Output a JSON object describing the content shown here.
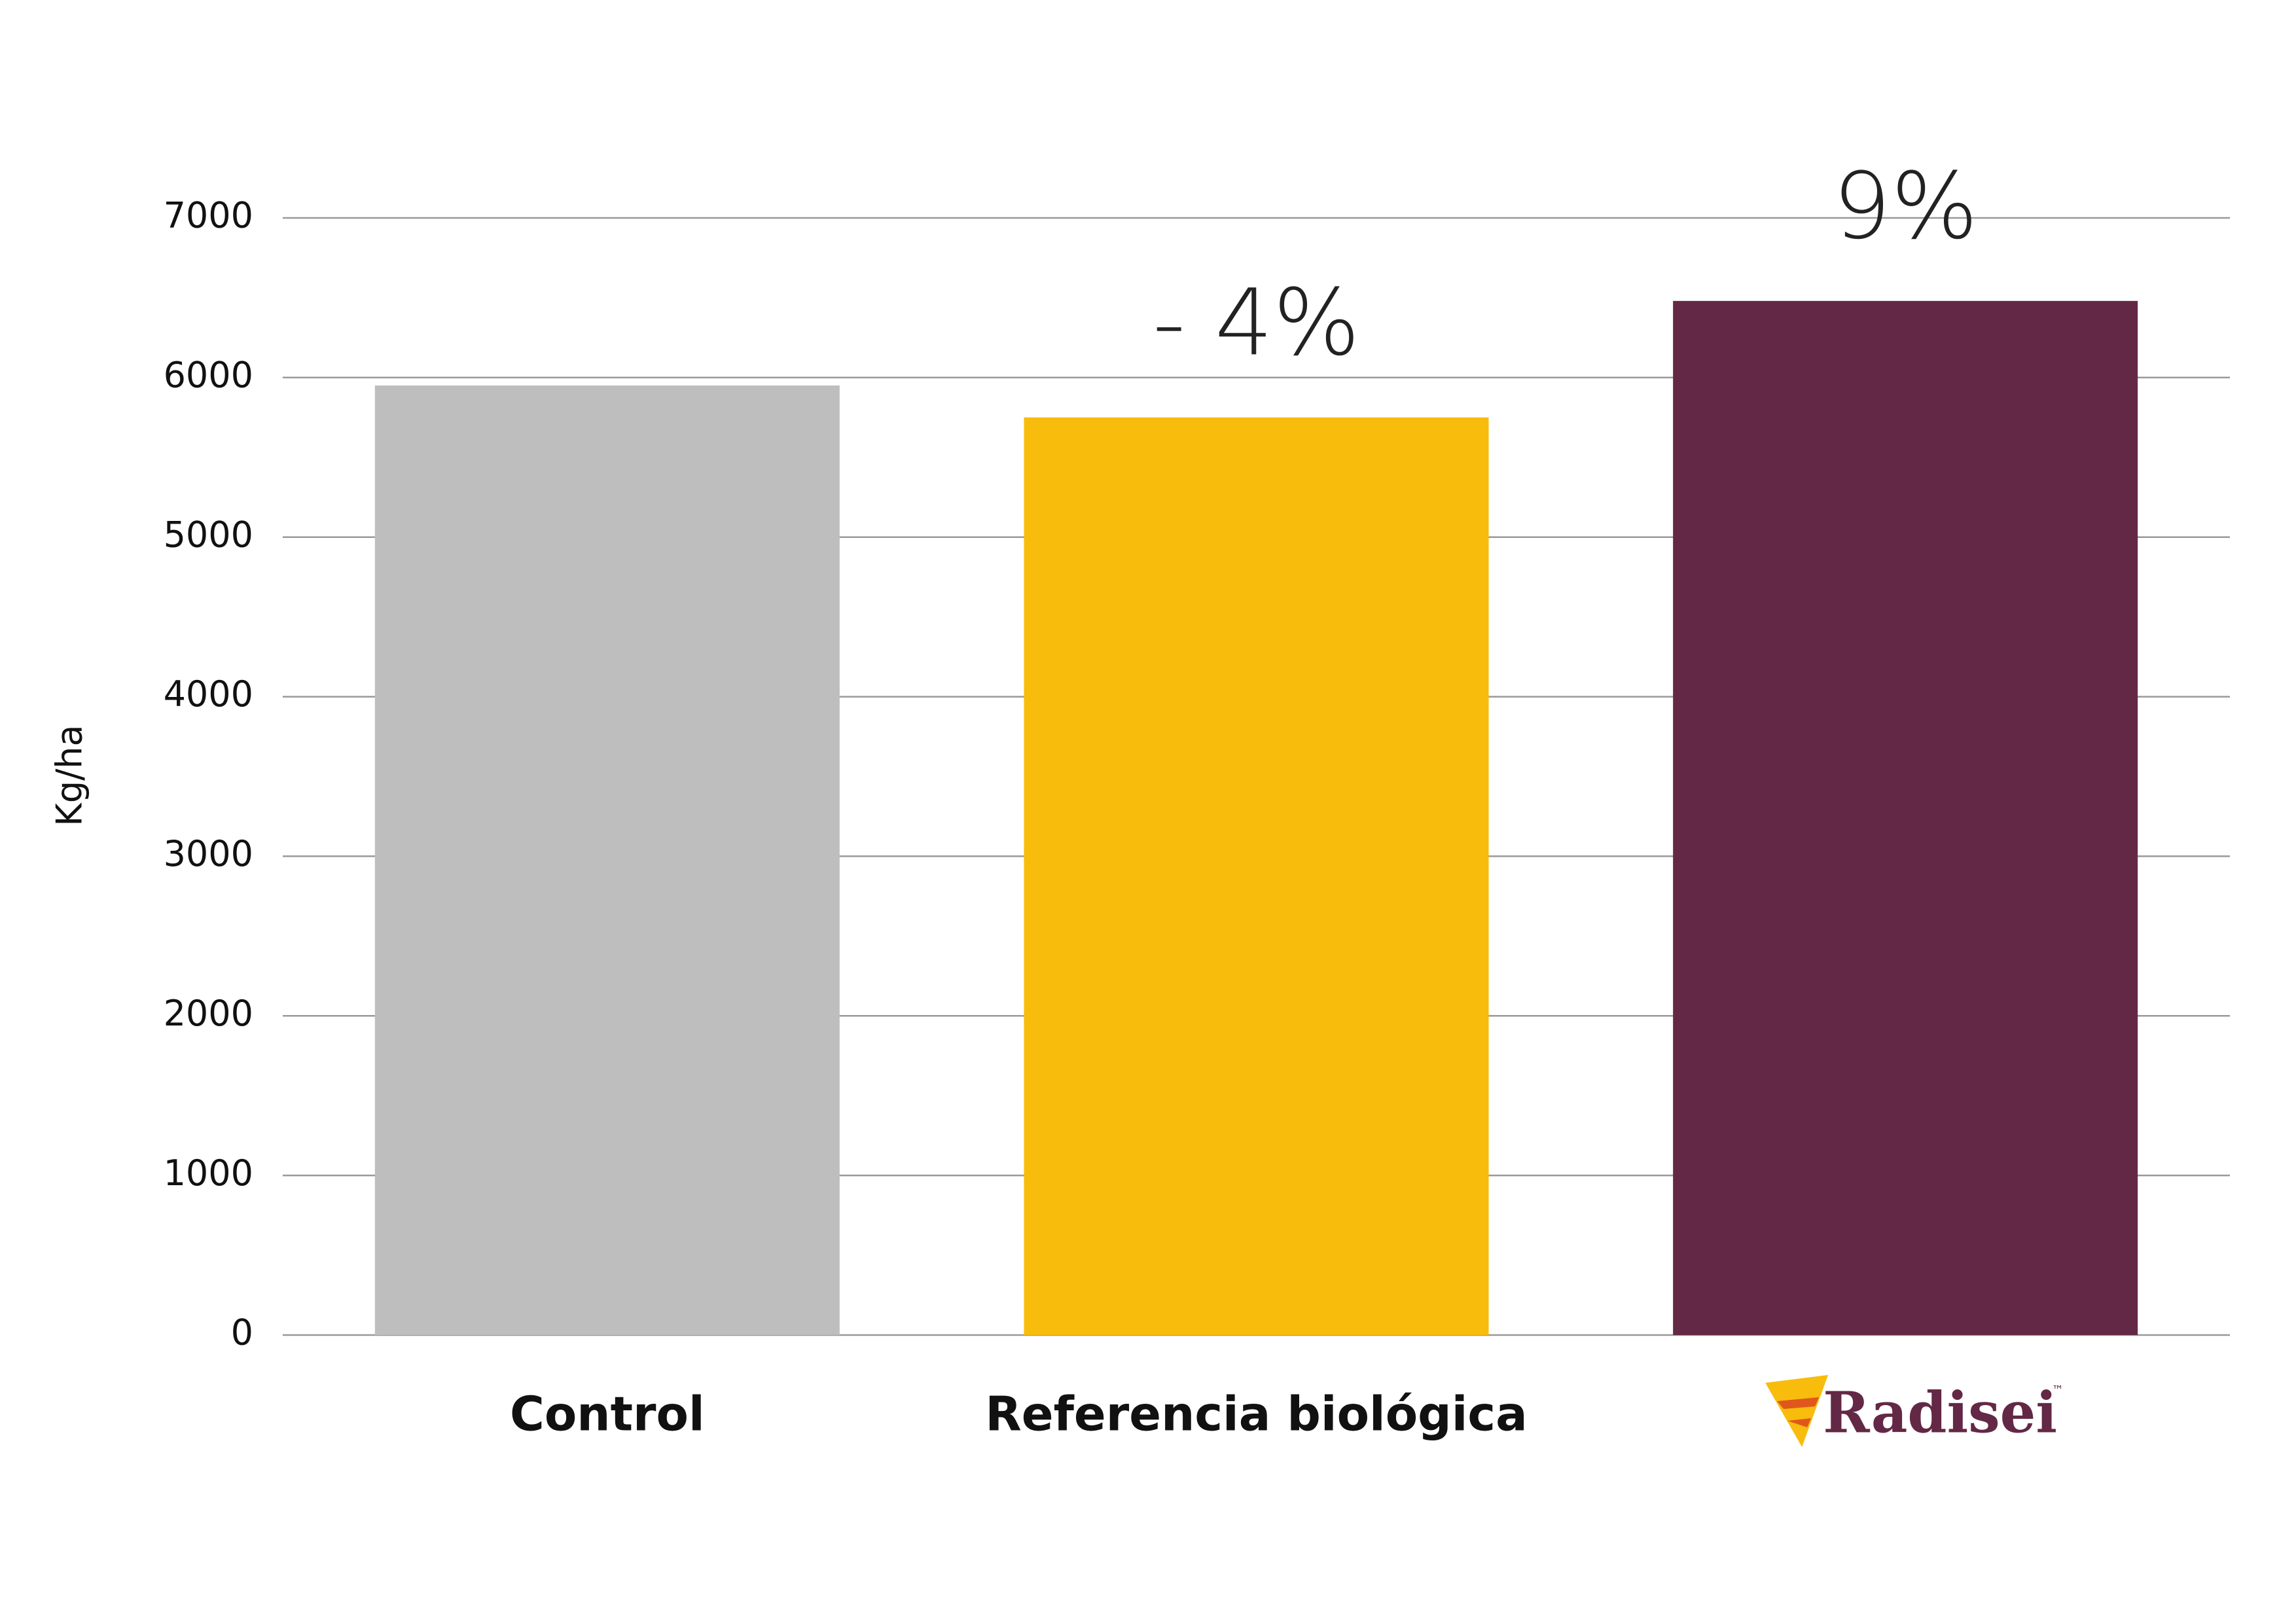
{
  "chart_data": {
    "type": "bar",
    "y_label": "Kg/ha",
    "categories": [
      "Control",
      "Referencia biológica",
      "Radisei"
    ],
    "values": [
      5950,
      5750,
      6480
    ],
    "colors": [
      "#bebebe",
      "#f8bc0c",
      "#632845"
    ],
    "annotations": [
      null,
      "- 4%",
      "9%"
    ],
    "trademark": "™",
    "ylim": [
      0,
      7000
    ],
    "yticks": [
      0,
      1000,
      2000,
      3000,
      4000,
      5000,
      6000,
      7000
    ],
    "grid": true
  }
}
